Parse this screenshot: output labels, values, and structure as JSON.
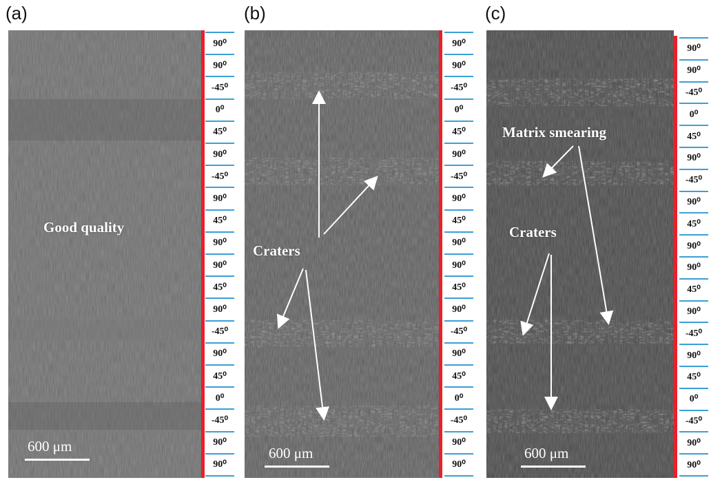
{
  "panels": [
    {
      "label": "(a)",
      "annotations": [
        "Good quality"
      ],
      "scalebar": "600 μm",
      "ply_angles": [
        "90⁰",
        "90⁰",
        "-45⁰",
        "0⁰",
        "45⁰",
        "90⁰",
        "-45⁰",
        "90⁰",
        "45⁰",
        "90⁰",
        "90⁰",
        "45⁰",
        "90⁰",
        "-45⁰",
        "90⁰",
        "45⁰",
        "0⁰",
        "-45⁰",
        "90⁰",
        "90⁰"
      ]
    },
    {
      "label": "(b)",
      "annotations": [
        "Craters"
      ],
      "scalebar": "600 μm",
      "ply_angles": [
        "90⁰",
        "90⁰",
        "-45⁰",
        "0⁰",
        "45⁰",
        "90⁰",
        "-45⁰",
        "90⁰",
        "45⁰",
        "90⁰",
        "90⁰",
        "45⁰",
        "90⁰",
        "-45⁰",
        "90⁰",
        "45⁰",
        "0⁰",
        "-45⁰",
        "90⁰",
        "90⁰"
      ]
    },
    {
      "label": "(c)",
      "annotations": [
        "Matrix smearing",
        "Craters"
      ],
      "scalebar": "600 μm",
      "ply_angles": [
        "90⁰",
        "90⁰",
        "-45⁰",
        "0⁰",
        "45⁰",
        "90⁰",
        "-45⁰",
        "90⁰",
        "45⁰",
        "90⁰",
        "90⁰",
        "45⁰",
        "90⁰",
        "-45⁰",
        "90⁰",
        "45⁰",
        "0⁰",
        "-45⁰",
        "90⁰",
        "90⁰"
      ]
    }
  ],
  "colors": {
    "marker_bar": "#e8202a",
    "ply_separator": "#3a9fd6",
    "annotation_text": "#ffffff"
  }
}
